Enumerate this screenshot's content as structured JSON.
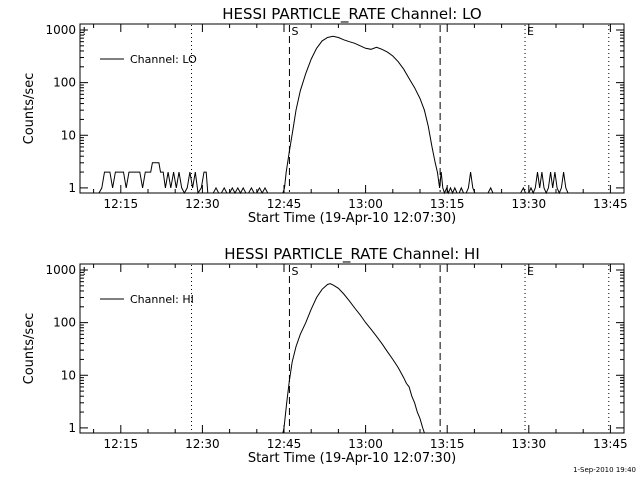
{
  "timestamp": "1-Sep-2010 19:40",
  "chart_data": [
    {
      "type": "line",
      "title": "HESSI PARTICLE_RATE Channel: LO",
      "xlabel": "Start Time (19-Apr-10 12:07:30)",
      "ylabel": "Counts/sec",
      "y_scale": "log",
      "xlim_minutes": [
        727.5,
        827.5
      ],
      "ylim": [
        0.8,
        1300
      ],
      "x_ticks": [
        {
          "m": 735,
          "label": "12:15"
        },
        {
          "m": 750,
          "label": "12:30"
        },
        {
          "m": 765,
          "label": "12:45"
        },
        {
          "m": 780,
          "label": "13:00"
        },
        {
          "m": 795,
          "label": "13:15"
        },
        {
          "m": 810,
          "label": "13:30"
        },
        {
          "m": 825,
          "label": "13:45"
        }
      ],
      "y_ticks": [
        {
          "v": 1,
          "label": "1"
        },
        {
          "v": 10,
          "label": "10"
        },
        {
          "v": 100,
          "label": "100"
        },
        {
          "v": 1000,
          "label": "1000"
        }
      ],
      "legend": {
        "label": "Channel: LO",
        "position": "top-left"
      },
      "markers": [
        {
          "m": 748.0,
          "style": "dotted",
          "label": ""
        },
        {
          "m": 766.0,
          "style": "dashed",
          "label": "S"
        },
        {
          "m": 793.7,
          "style": "dashed",
          "label": ""
        },
        {
          "m": 809.3,
          "style": "dotted",
          "label": "E"
        },
        {
          "m": 824.7,
          "style": "dotted",
          "label": ""
        }
      ],
      "series": [
        {
          "name": "Channel: LO",
          "points": [
            [
              731.0,
              0
            ],
            [
              731.5,
              1
            ],
            [
              732.0,
              2
            ],
            [
              733.0,
              2
            ],
            [
              733.5,
              1
            ],
            [
              734.0,
              2
            ],
            [
              735.5,
              2
            ],
            [
              736.0,
              1
            ],
            [
              736.5,
              2
            ],
            [
              738.5,
              2
            ],
            [
              739.0,
              1
            ],
            [
              739.5,
              2
            ],
            [
              740.5,
              2
            ],
            [
              740.8,
              3
            ],
            [
              742.0,
              3
            ],
            [
              742.3,
              2
            ],
            [
              742.8,
              2
            ],
            [
              743.2,
              1
            ],
            [
              743.7,
              2
            ],
            [
              744.2,
              1
            ],
            [
              744.7,
              2
            ],
            [
              745.2,
              1
            ],
            [
              745.7,
              2
            ],
            [
              746.2,
              1
            ],
            [
              746.7,
              0
            ],
            [
              747.2,
              1
            ],
            [
              747.7,
              2
            ],
            [
              748.2,
              1
            ],
            [
              748.7,
              2
            ],
            [
              749.2,
              0
            ],
            [
              749.8,
              1
            ],
            [
              750.3,
              2
            ],
            [
              750.7,
              2
            ],
            [
              751.0,
              0
            ],
            [
              752.0,
              0
            ],
            [
              752.5,
              1
            ],
            [
              753.0,
              0
            ],
            [
              753.5,
              0
            ],
            [
              754.0,
              1
            ],
            [
              754.5,
              0
            ],
            [
              755.0,
              0
            ],
            [
              755.5,
              1
            ],
            [
              756.0,
              0
            ],
            [
              756.5,
              1
            ],
            [
              757.0,
              0
            ],
            [
              757.5,
              1
            ],
            [
              758.0,
              0
            ],
            [
              758.5,
              0
            ],
            [
              759.0,
              1
            ],
            [
              759.5,
              0
            ],
            [
              760.0,
              0
            ],
            [
              760.5,
              1
            ],
            [
              761.0,
              0
            ],
            [
              761.5,
              1
            ],
            [
              762.0,
              0
            ],
            [
              764.8,
              0
            ],
            [
              765.1,
              1
            ],
            [
              765.4,
              2
            ],
            [
              766.0,
              5
            ],
            [
              766.6,
              12
            ],
            [
              767.2,
              30
            ],
            [
              768.0,
              70
            ],
            [
              769.0,
              150
            ],
            [
              770.0,
              280
            ],
            [
              771.0,
              450
            ],
            [
              772.0,
              620
            ],
            [
              773.0,
              720
            ],
            [
              774.0,
              760
            ],
            [
              775.0,
              720
            ],
            [
              776.0,
              650
            ],
            [
              777.0,
              600
            ],
            [
              778.0,
              560
            ],
            [
              779.0,
              500
            ],
            [
              780.0,
              450
            ],
            [
              781.0,
              430
            ],
            [
              782.0,
              470
            ],
            [
              783.0,
              430
            ],
            [
              784.0,
              380
            ],
            [
              785.0,
              320
            ],
            [
              786.0,
              250
            ],
            [
              787.0,
              180
            ],
            [
              788.0,
              120
            ],
            [
              789.0,
              80
            ],
            [
              790.0,
              50
            ],
            [
              790.8,
              30
            ],
            [
              791.5,
              15
            ],
            [
              792.2,
              6
            ],
            [
              792.8,
              3
            ],
            [
              793.2,
              2
            ],
            [
              793.6,
              1
            ],
            [
              793.9,
              2
            ],
            [
              794.2,
              1
            ],
            [
              794.5,
              0
            ],
            [
              794.9,
              1
            ],
            [
              795.2,
              0
            ],
            [
              795.6,
              1
            ],
            [
              796.0,
              0
            ],
            [
              796.4,
              1
            ],
            [
              796.8,
              0
            ],
            [
              797.2,
              0
            ],
            [
              797.6,
              1
            ],
            [
              798.0,
              0
            ],
            [
              798.5,
              0
            ],
            [
              798.9,
              1
            ],
            [
              799.3,
              2
            ],
            [
              799.7,
              1
            ],
            [
              800.1,
              0
            ],
            [
              802.5,
              0
            ],
            [
              803.0,
              1
            ],
            [
              803.4,
              0
            ],
            [
              808.5,
              0
            ],
            [
              809.0,
              1
            ],
            [
              809.4,
              0
            ],
            [
              810.0,
              0
            ],
            [
              810.4,
              1
            ],
            [
              810.8,
              0
            ],
            [
              811.2,
              1
            ],
            [
              811.6,
              2
            ],
            [
              812.0,
              1
            ],
            [
              812.4,
              2
            ],
            [
              812.8,
              1
            ],
            [
              813.2,
              0
            ],
            [
              813.6,
              1
            ],
            [
              814.0,
              2
            ],
            [
              814.4,
              1
            ],
            [
              814.8,
              2
            ],
            [
              815.2,
              1
            ],
            [
              815.6,
              0
            ],
            [
              816.0,
              1
            ],
            [
              816.4,
              2
            ],
            [
              816.8,
              1
            ],
            [
              817.2,
              0
            ]
          ]
        }
      ]
    },
    {
      "type": "line",
      "title": "HESSI PARTICLE_RATE Channel: HI",
      "xlabel": "Start Time (19-Apr-10 12:07:30)",
      "ylabel": "Counts/sec",
      "y_scale": "log",
      "xlim_minutes": [
        727.5,
        827.5
      ],
      "ylim": [
        0.8,
        1300
      ],
      "x_ticks": [
        {
          "m": 735,
          "label": "12:15"
        },
        {
          "m": 750,
          "label": "12:30"
        },
        {
          "m": 765,
          "label": "12:45"
        },
        {
          "m": 780,
          "label": "13:00"
        },
        {
          "m": 795,
          "label": "13:15"
        },
        {
          "m": 810,
          "label": "13:30"
        },
        {
          "m": 825,
          "label": "13:45"
        }
      ],
      "y_ticks": [
        {
          "v": 1,
          "label": "1"
        },
        {
          "v": 10,
          "label": "10"
        },
        {
          "v": 100,
          "label": "100"
        },
        {
          "v": 1000,
          "label": "1000"
        }
      ],
      "legend": {
        "label": "Channel: HI",
        "position": "top-left"
      },
      "markers": [
        {
          "m": 748.0,
          "style": "dotted",
          "label": ""
        },
        {
          "m": 766.0,
          "style": "dashed",
          "label": "S"
        },
        {
          "m": 793.7,
          "style": "dashed",
          "label": ""
        },
        {
          "m": 809.3,
          "style": "dotted",
          "label": "E"
        },
        {
          "m": 824.7,
          "style": "dotted",
          "label": ""
        }
      ],
      "series": [
        {
          "name": "Channel: HI",
          "points": [
            [
              764.8,
              0.8
            ],
            [
              765.0,
              1
            ],
            [
              765.5,
              3
            ],
            [
              766.0,
              8
            ],
            [
              766.5,
              18
            ],
            [
              767.2,
              35
            ],
            [
              768.0,
              60
            ],
            [
              769.0,
              100
            ],
            [
              770.0,
              180
            ],
            [
              771.0,
              300
            ],
            [
              772.0,
              430
            ],
            [
              773.0,
              530
            ],
            [
              773.5,
              550
            ],
            [
              774.0,
              520
            ],
            [
              775.0,
              450
            ],
            [
              776.0,
              350
            ],
            [
              777.0,
              260
            ],
            [
              778.0,
              190
            ],
            [
              779.0,
              140
            ],
            [
              780.0,
              100
            ],
            [
              781.0,
              75
            ],
            [
              782.0,
              55
            ],
            [
              783.0,
              40
            ],
            [
              784.0,
              28
            ],
            [
              785.0,
              20
            ],
            [
              786.0,
              14
            ],
            [
              787.0,
              9
            ],
            [
              787.5,
              7
            ],
            [
              788.0,
              6
            ],
            [
              788.5,
              4
            ],
            [
              789.0,
              3
            ],
            [
              789.5,
              2
            ],
            [
              790.0,
              1.5
            ],
            [
              790.5,
              1
            ],
            [
              790.8,
              0.8
            ]
          ]
        }
      ]
    }
  ]
}
